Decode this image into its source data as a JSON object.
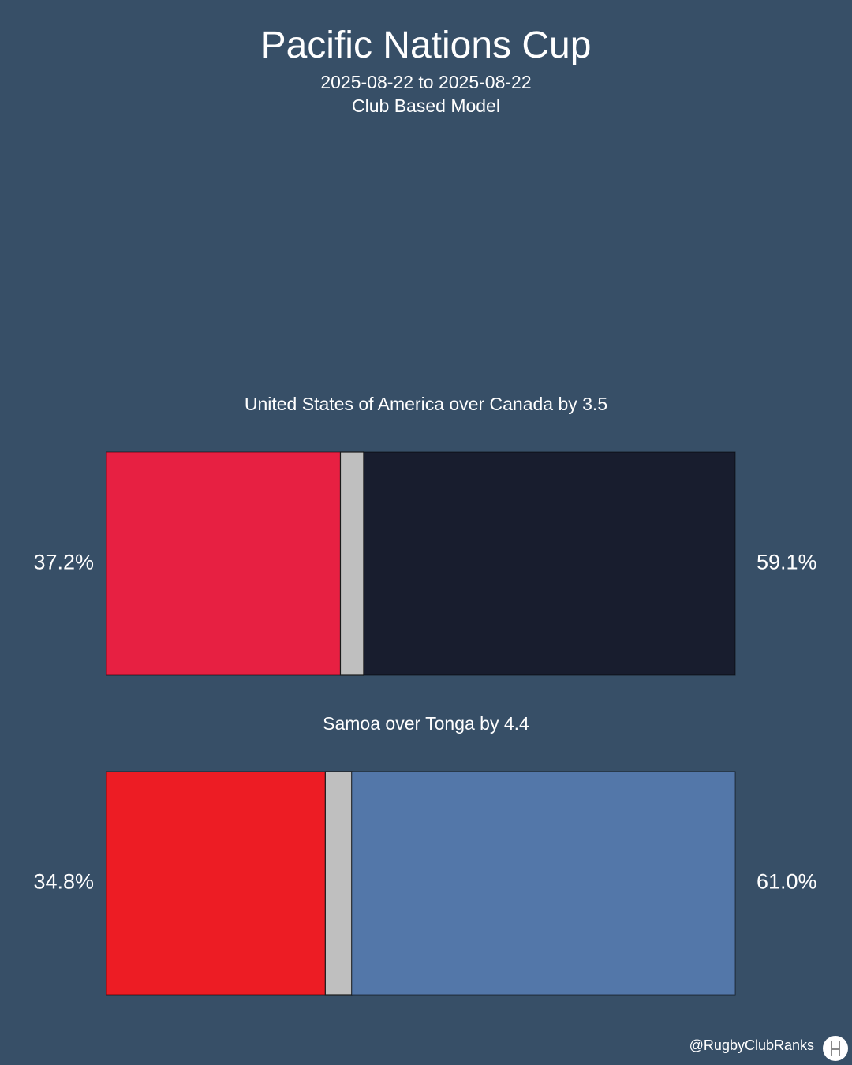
{
  "title": "Pacific Nations Cup",
  "subtitle_dates": "2025-08-22 to 2025-08-22",
  "subtitle_model": "Club Based Model",
  "footer": {
    "handle": "@RugbyClubRanks",
    "logo_icon": "rugby-posts-logo-icon"
  },
  "colors": {
    "background": "#374f67",
    "draw": "#bfbfbf"
  },
  "chart_data": {
    "type": "bar",
    "orientation": "horizontal-stacked",
    "xlim": [
      0,
      100
    ],
    "matches": [
      {
        "caption": "United States of America over Canada by 3.5",
        "left_label": "37.2%",
        "right_label": "59.1%",
        "left_value": 37.2,
        "right_value": 59.1,
        "left_color": "#e72042",
        "right_color": "#181d2e"
      },
      {
        "caption": "Samoa over Tonga by 4.4",
        "left_label": "34.8%",
        "right_label": "61.0%",
        "left_value": 34.8,
        "right_value": 61.0,
        "left_color": "#ed1c24",
        "right_color": "#5377a9"
      }
    ]
  }
}
